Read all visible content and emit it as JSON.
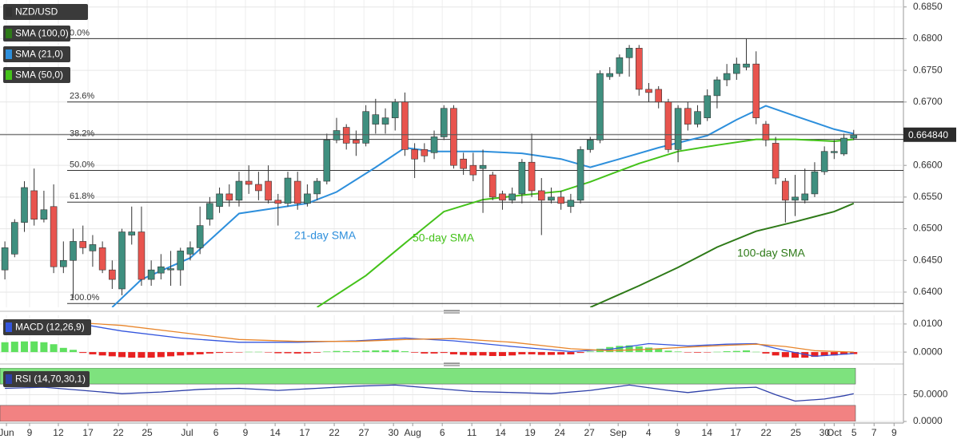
{
  "chart_data": [
    {
      "type": "candlestick",
      "title": "NZD/USD",
      "up_color": "#3f8f7f",
      "down_color": "#e8544e",
      "x": [
        0,
        1,
        2,
        3,
        4,
        5,
        6,
        7,
        8,
        9,
        10,
        11,
        12,
        13,
        14,
        15,
        16,
        17,
        18,
        19,
        20,
        21,
        22,
        23,
        24,
        25,
        26,
        27,
        28,
        29,
        30,
        31,
        32,
        33,
        34,
        35,
        36,
        37,
        38,
        39,
        40,
        41,
        42,
        43,
        44,
        45,
        46,
        47,
        48,
        49,
        50,
        51,
        52,
        53,
        54,
        55,
        56,
        57,
        58,
        59,
        60,
        61,
        62,
        63,
        64,
        65,
        66,
        67,
        68,
        69,
        70,
        71,
        72,
        73,
        74,
        75,
        76,
        77,
        78,
        79,
        80,
        81,
        82,
        83,
        84,
        85,
        86,
        87
      ],
      "open": [
        0.6435,
        0.646,
        0.651,
        0.656,
        0.6515,
        0.6535,
        0.644,
        0.645,
        0.648,
        0.6465,
        0.647,
        0.6435,
        0.6405,
        0.649,
        0.6495,
        0.642,
        0.643,
        0.6435,
        0.6435,
        0.646,
        0.647,
        0.6515,
        0.6535,
        0.6555,
        0.6545,
        0.6575,
        0.657,
        0.6575,
        0.6545,
        0.654,
        0.6575,
        0.654,
        0.6555,
        0.6575,
        0.664,
        0.666,
        0.664,
        0.6635,
        0.6665,
        0.6665,
        0.6675,
        0.67,
        0.6625,
        0.6625,
        0.662,
        0.6645,
        0.669,
        0.661,
        0.66,
        0.6595,
        0.6585,
        0.6555,
        0.6545,
        0.6555,
        0.6605,
        0.656,
        0.6545,
        0.655,
        0.6535,
        0.6545,
        0.6625,
        0.664,
        0.674,
        0.6745,
        0.677,
        0.6785,
        0.672,
        0.672,
        0.67,
        0.6625,
        0.669,
        0.6665,
        0.6675,
        0.671,
        0.6735,
        0.6745,
        0.6755,
        0.676,
        0.6665,
        0.6635,
        0.6575,
        0.6545,
        0.6545,
        0.6555,
        0.659,
        0.662,
        0.6618,
        0.6643
      ],
      "high": [
        0.648,
        0.6515,
        0.6575,
        0.6595,
        0.656,
        0.657,
        0.648,
        0.65,
        0.6505,
        0.649,
        0.648,
        0.645,
        0.65,
        0.6535,
        0.6535,
        0.645,
        0.646,
        0.6465,
        0.647,
        0.648,
        0.6535,
        0.655,
        0.6565,
        0.657,
        0.659,
        0.66,
        0.659,
        0.66,
        0.6555,
        0.659,
        0.659,
        0.657,
        0.658,
        0.665,
        0.6675,
        0.6665,
        0.6655,
        0.6695,
        0.6705,
        0.669,
        0.6705,
        0.6715,
        0.6635,
        0.6635,
        0.6655,
        0.6695,
        0.6695,
        0.662,
        0.662,
        0.6625,
        0.659,
        0.656,
        0.6565,
        0.661,
        0.665,
        0.658,
        0.6565,
        0.656,
        0.6555,
        0.663,
        0.6645,
        0.675,
        0.6755,
        0.6775,
        0.679,
        0.679,
        0.673,
        0.6725,
        0.6705,
        0.6695,
        0.67,
        0.6695,
        0.672,
        0.674,
        0.676,
        0.677,
        0.68,
        0.678,
        0.667,
        0.6645,
        0.658,
        0.6585,
        0.6595,
        0.6605,
        0.663,
        0.664,
        0.665,
        0.6656
      ],
      "low": [
        0.642,
        0.6455,
        0.6495,
        0.6505,
        0.651,
        0.643,
        0.643,
        0.639,
        0.646,
        0.644,
        0.643,
        0.6405,
        0.6395,
        0.6475,
        0.641,
        0.641,
        0.642,
        0.641,
        0.641,
        0.645,
        0.646,
        0.6505,
        0.6525,
        0.6535,
        0.6535,
        0.6555,
        0.6545,
        0.654,
        0.6505,
        0.6535,
        0.653,
        0.6535,
        0.6545,
        0.657,
        0.6635,
        0.6625,
        0.6615,
        0.663,
        0.665,
        0.665,
        0.6655,
        0.6615,
        0.658,
        0.6605,
        0.661,
        0.664,
        0.6595,
        0.6585,
        0.6575,
        0.6525,
        0.6545,
        0.653,
        0.654,
        0.654,
        0.655,
        0.649,
        0.654,
        0.653,
        0.6525,
        0.654,
        0.662,
        0.6635,
        0.6735,
        0.674,
        0.674,
        0.671,
        0.67,
        0.669,
        0.662,
        0.6605,
        0.6655,
        0.666,
        0.667,
        0.669,
        0.6725,
        0.6735,
        0.675,
        0.6665,
        0.663,
        0.657,
        0.651,
        0.652,
        0.654,
        0.655,
        0.6585,
        0.661,
        0.6615,
        0.664
      ],
      "close": [
        0.647,
        0.651,
        0.6565,
        0.6515,
        0.653,
        0.644,
        0.645,
        0.648,
        0.647,
        0.6475,
        0.6435,
        0.642,
        0.6495,
        0.6495,
        0.642,
        0.6435,
        0.644,
        0.6437,
        0.6465,
        0.647,
        0.6505,
        0.654,
        0.6555,
        0.6545,
        0.6575,
        0.657,
        0.656,
        0.6545,
        0.654,
        0.658,
        0.654,
        0.6555,
        0.6575,
        0.664,
        0.6655,
        0.6635,
        0.6635,
        0.6685,
        0.668,
        0.6675,
        0.67,
        0.6625,
        0.661,
        0.6615,
        0.6645,
        0.669,
        0.66,
        0.6595,
        0.6585,
        0.66,
        0.655,
        0.6545,
        0.6555,
        0.6605,
        0.656,
        0.6545,
        0.655,
        0.654,
        0.6545,
        0.6625,
        0.664,
        0.6745,
        0.6745,
        0.677,
        0.6785,
        0.672,
        0.6715,
        0.67,
        0.6625,
        0.669,
        0.6665,
        0.6685,
        0.671,
        0.6735,
        0.6745,
        0.676,
        0.676,
        0.6675,
        0.664,
        0.658,
        0.6545,
        0.655,
        0.6555,
        0.659,
        0.6622,
        0.6622,
        0.6643,
        0.6648
      ],
      "series": [
        {
          "name": "SMA (100,0)",
          "color": "#2e7a18",
          "x": [
            60,
            65,
            69,
            73,
            77,
            81,
            85,
            87
          ],
          "values": [
            0.6376,
            0.641,
            0.6439,
            0.6471,
            0.6496,
            0.6511,
            0.6527,
            0.654
          ]
        },
        {
          "name": "SMA (21,0)",
          "color": "#2d8fdc",
          "x": [
            11,
            14,
            19,
            24,
            31,
            34,
            38,
            41,
            44,
            49,
            53,
            57,
            60,
            63,
            67,
            72,
            75,
            78,
            81,
            85,
            87
          ],
          "values": [
            0.6376,
            0.642,
            0.6454,
            0.6524,
            0.654,
            0.6558,
            0.6597,
            0.6628,
            0.6622,
            0.6622,
            0.6619,
            0.661,
            0.6597,
            0.661,
            0.6628,
            0.6647,
            0.6672,
            0.6694,
            0.6678,
            0.6657,
            0.665
          ]
        },
        {
          "name": "SMA (50,0)",
          "color": "#44c21a",
          "x": [
            32,
            37,
            41,
            45,
            49,
            53,
            57,
            60,
            65,
            69,
            73,
            77,
            81,
            85,
            87
          ],
          "values": [
            0.6376,
            0.6426,
            0.6477,
            0.6527,
            0.6546,
            0.6553,
            0.6559,
            0.6574,
            0.6603,
            0.6622,
            0.6632,
            0.6641,
            0.6641,
            0.6638,
            0.6641
          ]
        }
      ],
      "annotations": [
        {
          "text": "21-day SMA",
          "color": "#2d8fdc"
        },
        {
          "text": "50-day SMA",
          "color": "#44c21a"
        },
        {
          "text": "100-day SMA",
          "color": "#2e7a18"
        }
      ],
      "levels": [
        {
          "label": "0.0%",
          "value": 0.68
        },
        {
          "label": "23.6%",
          "value": 0.67
        },
        {
          "label": "38.2%",
          "value": 0.6641
        },
        {
          "label": "50.0%",
          "value": 0.6592
        },
        {
          "label": "61.8%",
          "value": 0.6542
        },
        {
          "label": "100.0%",
          "value": 0.6382
        }
      ],
      "last_price": {
        "value": 0.66484,
        "label": "0.664840"
      },
      "xlim": [
        -0.5,
        92.1
      ],
      "ylim": [
        0.6376,
        0.6861
      ],
      "yticks": [
        {
          "value": 0.685,
          "label": "0.6850"
        },
        {
          "value": 0.68,
          "label": "0.6800"
        },
        {
          "value": 0.675,
          "label": "0.6750"
        },
        {
          "value": 0.67,
          "label": "0.6700"
        },
        {
          "value": 0.665,
          "label": "0.6650"
        },
        {
          "value": 0.66,
          "label": "0.6600"
        },
        {
          "value": 0.655,
          "label": "0.6550"
        },
        {
          "value": 0.65,
          "label": "0.6500"
        },
        {
          "value": 0.645,
          "label": "0.6450"
        },
        {
          "value": 0.64,
          "label": "0.6400"
        }
      ],
      "xticks": [
        {
          "value": 0.16,
          "label": "Jun"
        },
        {
          "value": 2.53,
          "label": "9"
        },
        {
          "value": 5.48,
          "label": "12"
        },
        {
          "value": 8.52,
          "label": "17"
        },
        {
          "value": 11.63,
          "label": "22"
        },
        {
          "value": 14.58,
          "label": "25"
        },
        {
          "value": 18.68,
          "label": "Jul"
        },
        {
          "value": 21.63,
          "label": "6"
        },
        {
          "value": 24.66,
          "label": "9"
        },
        {
          "value": 27.7,
          "label": "14"
        },
        {
          "value": 30.73,
          "label": "17"
        },
        {
          "value": 33.76,
          "label": "22"
        },
        {
          "value": 36.8,
          "label": "27"
        },
        {
          "value": 39.83,
          "label": "30"
        },
        {
          "value": 41.8,
          "label": "Aug"
        },
        {
          "value": 44.83,
          "label": "6"
        },
        {
          "value": 47.86,
          "label": "11"
        },
        {
          "value": 50.81,
          "label": "14"
        },
        {
          "value": 53.84,
          "label": "19"
        },
        {
          "value": 56.88,
          "label": "24"
        },
        {
          "value": 59.91,
          "label": "27"
        },
        {
          "value": 62.86,
          "label": "Sep"
        },
        {
          "value": 65.98,
          "label": "4"
        },
        {
          "value": 68.93,
          "label": "9"
        },
        {
          "value": 71.96,
          "label": "14"
        },
        {
          "value": 74.91,
          "label": "17"
        },
        {
          "value": 78.02,
          "label": "22"
        },
        {
          "value": 81.06,
          "label": "25"
        },
        {
          "value": 84.01,
          "label": "30"
        },
        {
          "value": 85.0,
          "label": "Oct"
        },
        {
          "value": 87.04,
          "label": "5"
        },
        {
          "value": 89.09,
          "label": "7"
        },
        {
          "value": 91.14,
          "label": "9"
        }
      ]
    },
    {
      "type": "macd",
      "title": "MACD (12,26,9)",
      "up_color": "#5fe05f",
      "down_color": "#e82020",
      "x": [
        0,
        1,
        2,
        3,
        4,
        5,
        6,
        7,
        8,
        9,
        10,
        11,
        12,
        13,
        14,
        15,
        16,
        17,
        18,
        19,
        20,
        21,
        22,
        23,
        24,
        25,
        26,
        27,
        28,
        29,
        30,
        31,
        32,
        33,
        34,
        35,
        36,
        37,
        38,
        39,
        40,
        41,
        42,
        43,
        44,
        45,
        46,
        47,
        48,
        49,
        50,
        51,
        52,
        53,
        54,
        55,
        56,
        57,
        58,
        59,
        60,
        61,
        62,
        63,
        64,
        65,
        66,
        67,
        68,
        69,
        70,
        71,
        72,
        73,
        74,
        75,
        76,
        77,
        78,
        79,
        80,
        81,
        82,
        83,
        84,
        85,
        86,
        87
      ],
      "values": [
        0.0035,
        0.0037,
        0.0038,
        0.0038,
        0.0035,
        0.0028,
        0.0015,
        0.0008,
        -0.0003,
        -0.0008,
        -0.0012,
        -0.0015,
        -0.0018,
        -0.002,
        -0.002,
        -0.002,
        -0.0018,
        -0.0015,
        -0.0012,
        -0.001,
        -0.0008,
        -0.0005,
        -0.0003,
        -0.0002,
        -0.0001,
        0.0001,
        0.0001,
        -0.0001,
        -0.0004,
        -0.0004,
        -0.0005,
        -0.0004,
        -0.0002,
        0.0002,
        0.0004,
        0.0003,
        0.0003,
        0.0005,
        0.0006,
        0.0006,
        0.0007,
        0.0003,
        -0.0002,
        -0.0005,
        -0.0005,
        -0.0003,
        -0.0008,
        -0.001,
        -0.0012,
        -0.0012,
        -0.0014,
        -0.0014,
        -0.0012,
        -0.0008,
        -0.0008,
        -0.001,
        -0.001,
        -0.0009,
        -0.0008,
        -0.0003,
        0.0002,
        0.0012,
        0.0018,
        0.0022,
        0.0024,
        0.002,
        0.0016,
        0.0012,
        0.0005,
        0.0002,
        -0.0001,
        -0.0002,
        -0.0001,
        0.0001,
        0.0003,
        0.0004,
        0.0006,
        0.0001,
        -0.0005,
        -0.0012,
        -0.0018,
        -0.002,
        -0.002,
        -0.0017,
        -0.0014,
        -0.0012,
        -0.0009,
        -0.0007
      ],
      "series": [
        {
          "name": "MACD",
          "color": "#3355dd",
          "x": [
            0,
            6,
            12,
            18,
            24,
            30,
            36,
            41,
            46,
            52,
            58,
            62,
            66,
            70,
            74,
            77,
            80,
            83,
            87
          ],
          "values": [
            0.0115,
            0.011,
            0.0075,
            0.005,
            0.0035,
            0.0035,
            0.004,
            0.005,
            0.004,
            0.002,
            0.0002,
            0.001,
            0.003,
            0.0022,
            0.0028,
            0.003,
            0.0005,
            -0.0015,
            -0.0005
          ]
        },
        {
          "name": "Signal",
          "color": "#e8852a",
          "x": [
            0,
            6,
            12,
            18,
            24,
            30,
            36,
            41,
            46,
            52,
            58,
            62,
            66,
            70,
            74,
            77,
            80,
            83,
            87
          ],
          "values": [
            0.011,
            0.0108,
            0.0095,
            0.007,
            0.0045,
            0.0038,
            0.0038,
            0.0045,
            0.0048,
            0.0035,
            0.0012,
            0.0005,
            0.001,
            0.0018,
            0.0024,
            0.0028,
            0.002,
            0.0005,
            0
          ]
        }
      ],
      "ylim": [
        -0.0031,
        0.0131
      ],
      "yticks": [
        {
          "value": 0.01,
          "label": "0.0100"
        },
        {
          "value": 0,
          "label": "0.0000"
        }
      ]
    },
    {
      "type": "rsi",
      "title": "RSI (14,70,30,1)",
      "bands": [
        {
          "from": 70,
          "to": 100,
          "color": "#7ee27e"
        },
        {
          "from": 0,
          "to": 30,
          "color": "#f28282"
        }
      ],
      "series": [
        {
          "name": "RSI",
          "color": "#2d3fa8",
          "x": [
            0,
            4,
            8,
            12,
            16,
            20,
            24,
            28,
            32,
            36,
            40,
            44,
            48,
            52,
            56,
            60,
            64,
            68,
            70,
            74,
            77,
            79,
            81,
            84,
            86,
            87
          ],
          "values": [
            62,
            64,
            58,
            52,
            55,
            60,
            62,
            58,
            62,
            66,
            68,
            62,
            56,
            54,
            52,
            58,
            68,
            58,
            54,
            62,
            64,
            50,
            38,
            42,
            48,
            52
          ]
        }
      ],
      "ylim": [
        0,
        100
      ],
      "yticks": [
        {
          "value": 50,
          "label": "50.0000"
        },
        {
          "value": 0,
          "label": "0.0000"
        }
      ]
    }
  ]
}
